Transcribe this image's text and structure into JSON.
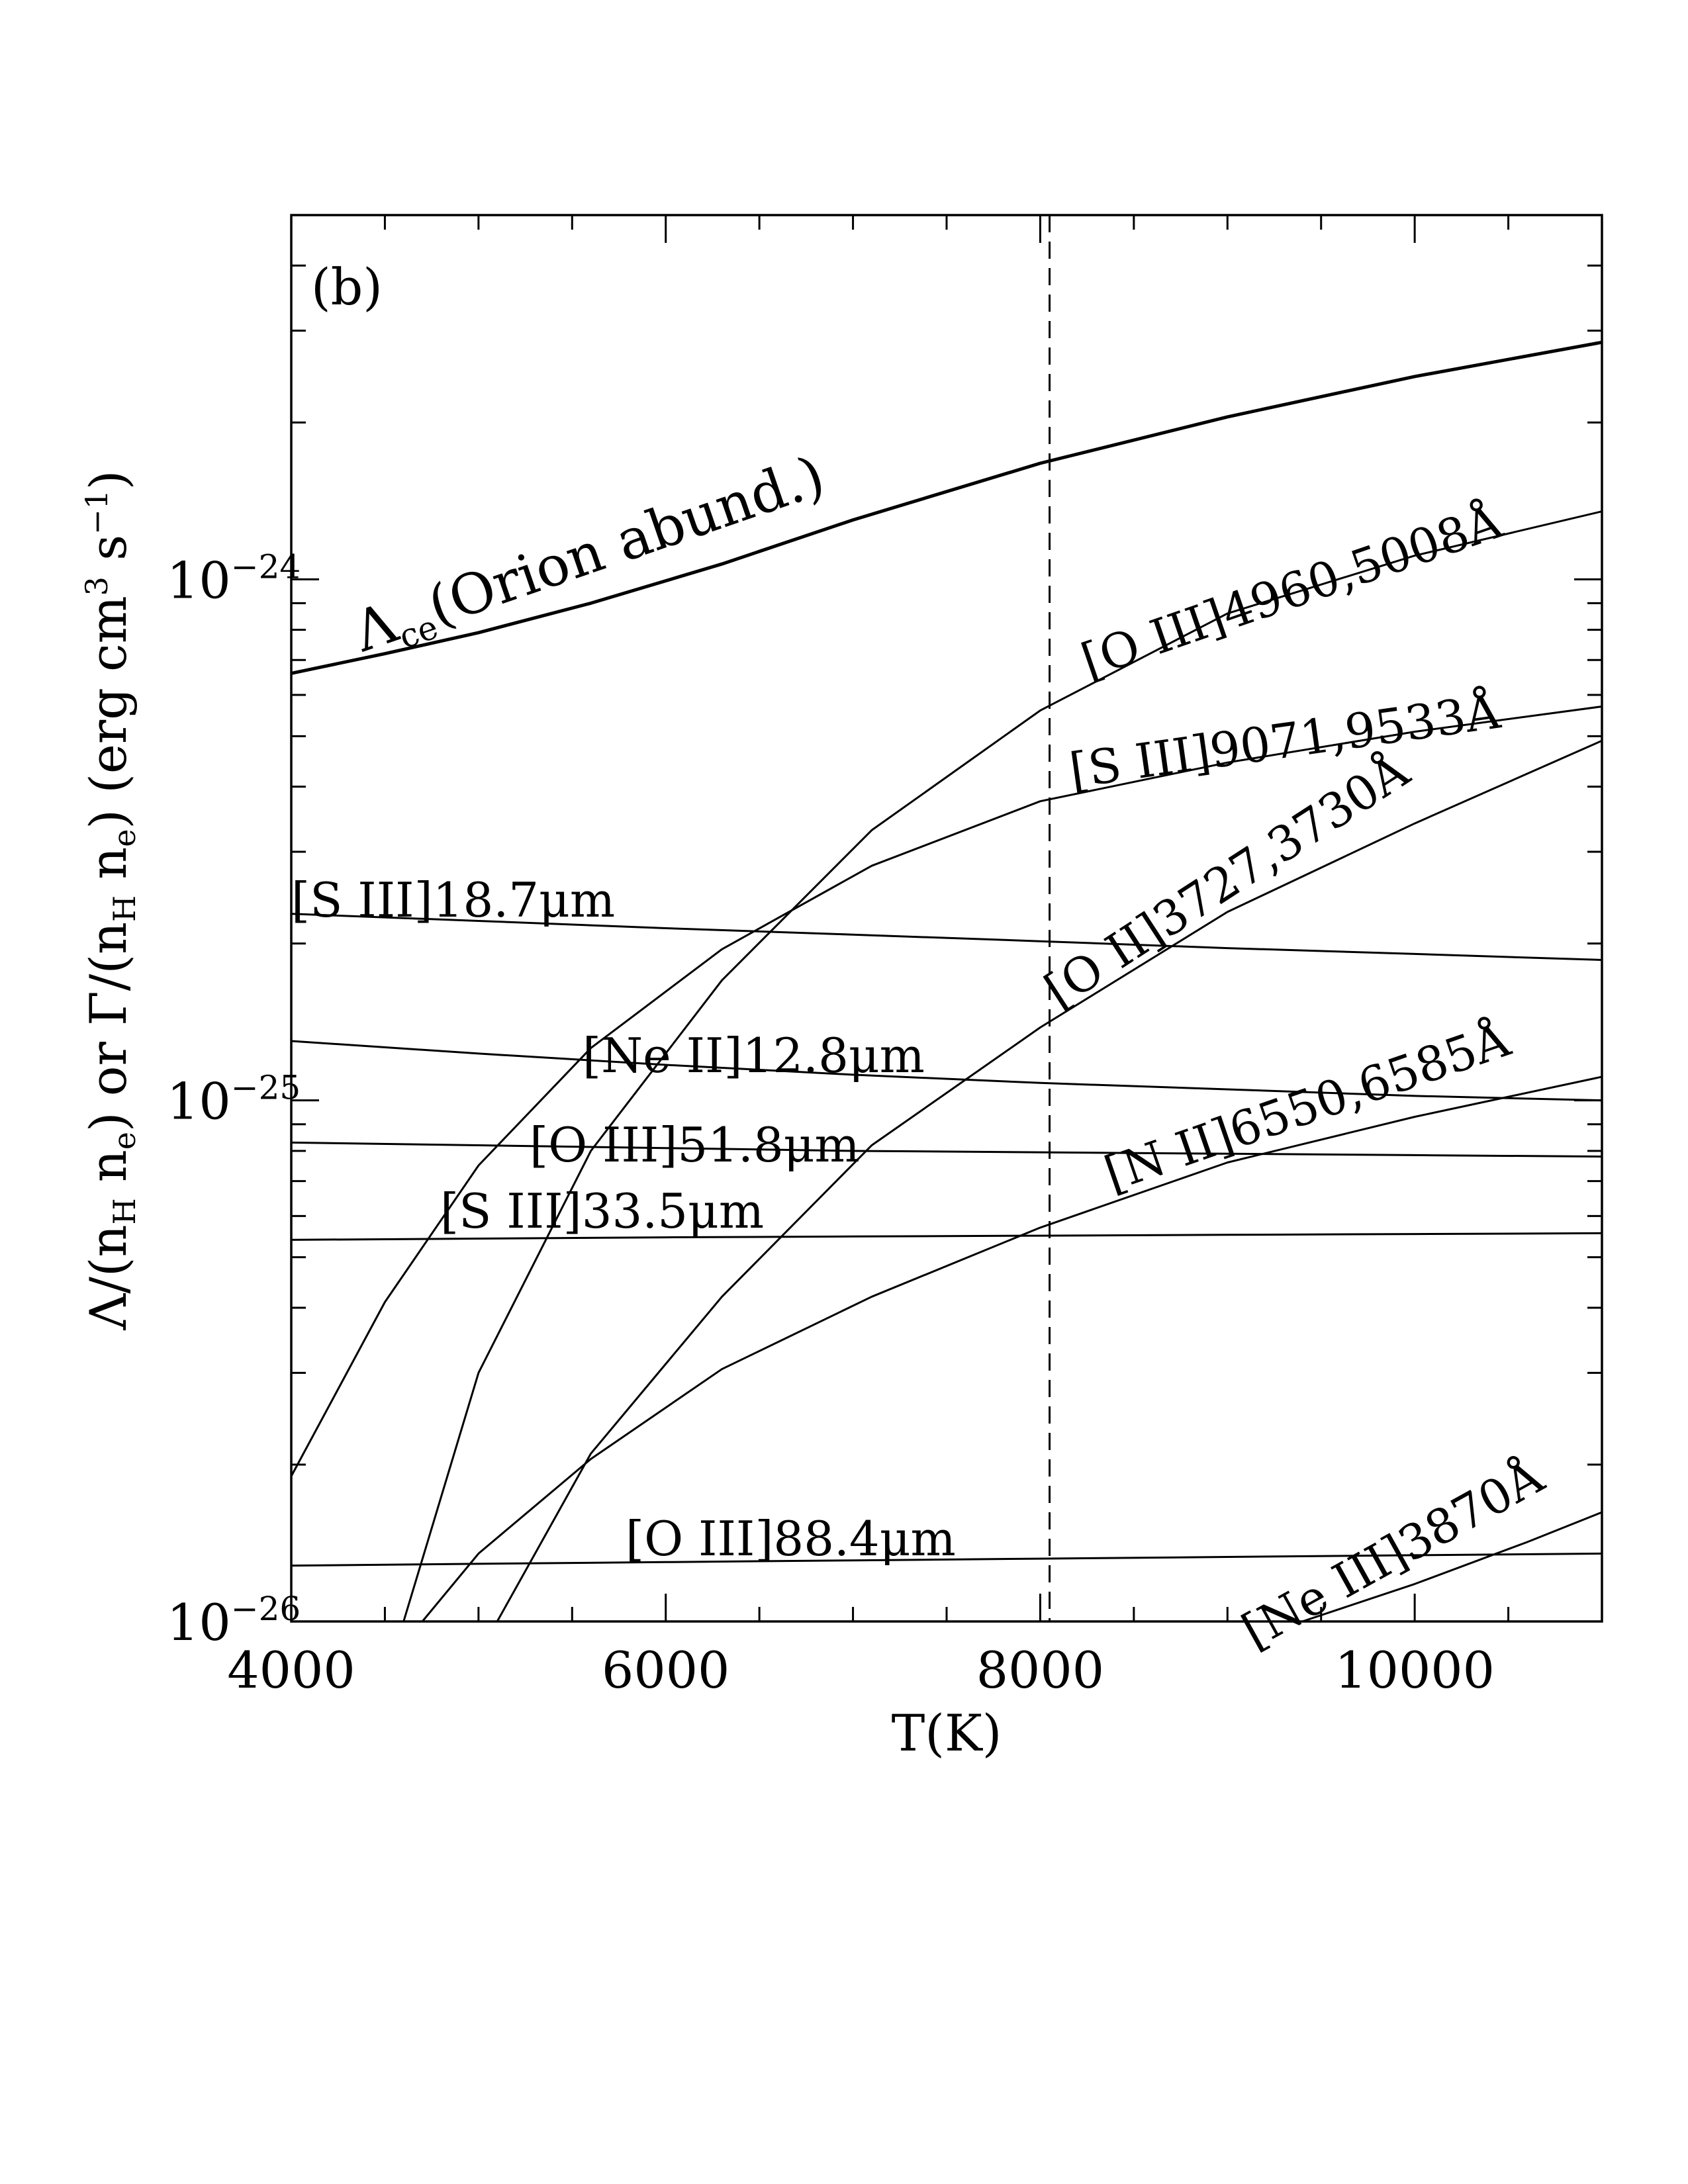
{
  "chart_data": {
    "type": "line",
    "panel_label": "(b)",
    "xlabel": "T(K)",
    "ylabel": "Λ/(n_H n_e) or Γ/(n_H n_e) (erg cm³ s⁻¹)",
    "yscale": "log",
    "xlim": [
      4000,
      11000
    ],
    "ylim": [
      1e-26,
      5e-24
    ],
    "x_ticks": [
      4000,
      6000,
      8000,
      10000
    ],
    "y_tick_labels": [
      {
        "value": 1e-26,
        "base": "10",
        "exp": "−26"
      },
      {
        "value": 1e-25,
        "base": "10",
        "exp": "−25"
      },
      {
        "value": 1e-24,
        "base": "10",
        "exp": "−24"
      }
    ],
    "reference_line": {
      "x": 8050,
      "style": "dashed"
    },
    "series": [
      {
        "name": "Λce(Orion abund.)",
        "x": [
          4000,
          4500,
          5000,
          5600,
          6300,
          7000,
          8000,
          9000,
          10000,
          11000
        ],
        "y": [
          6.6e-25,
          7.2e-25,
          7.9e-25,
          9e-25,
          1.07e-24,
          1.3e-24,
          1.67e-24,
          2.05e-24,
          2.45e-24,
          2.85e-24
        ]
      },
      {
        "name": "[O III]4960,5008Å",
        "x": [
          4600,
          5000,
          5600,
          6300,
          7100,
          8000,
          9000,
          10000,
          11000
        ],
        "y": [
          1e-26,
          3e-26,
          8e-26,
          1.7e-25,
          3.3e-25,
          5.6e-25,
          8.6e-25,
          1.11e-24,
          1.35e-24
        ]
      },
      {
        "name": "[S III]9071,9533Å",
        "x": [
          4000,
          4500,
          5000,
          5600,
          6300,
          7100,
          8000,
          9000,
          10000,
          11000
        ],
        "y": [
          1.9e-26,
          4.1e-26,
          7.5e-26,
          1.26e-25,
          1.95e-25,
          2.82e-25,
          3.75e-25,
          4.45e-25,
          5.1e-25,
          5.7e-25
        ]
      },
      {
        "name": "[O II]3727,3730Å",
        "x": [
          5100,
          5600,
          6300,
          7100,
          8000,
          9000,
          10000,
          11000
        ],
        "y": [
          1e-26,
          2.1e-26,
          4.2e-26,
          8.2e-26,
          1.38e-25,
          2.3e-25,
          3.4e-25,
          4.9e-25
        ]
      },
      {
        "name": "[N II]6550,6585Å",
        "x": [
          4700,
          5000,
          5600,
          6300,
          7100,
          8000,
          9000,
          10000,
          11000
        ],
        "y": [
          1e-26,
          1.35e-26,
          2.05e-26,
          3.05e-26,
          4.2e-26,
          5.7e-26,
          7.6e-26,
          9.3e-26,
          1.11e-25
        ]
      },
      {
        "name": "[S III]18.7μm",
        "x": [
          4000,
          5000,
          6000,
          7000,
          8000,
          9000,
          10000,
          11000
        ],
        "y": [
          2.28e-25,
          2.21e-25,
          2.14e-25,
          2.08e-25,
          2.02e-25,
          1.96e-25,
          1.91e-25,
          1.86e-25
        ]
      },
      {
        "name": "[Ne II]12.8μm",
        "x": [
          4000,
          5000,
          6000,
          7000,
          8000,
          9000,
          10000,
          11000
        ],
        "y": [
          1.3e-25,
          1.23e-25,
          1.17e-25,
          1.12e-25,
          1.08e-25,
          1.05e-25,
          1.02e-25,
          1e-25
        ]
      },
      {
        "name": "[O III]51.8μm",
        "x": [
          4000,
          5000,
          6000,
          7000,
          8000,
          9000,
          10000,
          11000
        ],
        "y": [
          8.3e-26,
          8.2e-26,
          8.1e-26,
          8e-26,
          7.95e-26,
          7.9e-26,
          7.85e-26,
          7.8e-26
        ]
      },
      {
        "name": "[S III]33.5μm",
        "x": [
          4000,
          5000,
          6000,
          7000,
          8000,
          9000,
          10000,
          11000
        ],
        "y": [
          5.4e-26,
          5.43e-26,
          5.46e-26,
          5.48e-26,
          5.5e-26,
          5.52e-26,
          5.54e-26,
          5.56e-26
        ]
      },
      {
        "name": "[O III]88.4μm",
        "x": [
          4000,
          5000,
          6000,
          7000,
          8000,
          9000,
          10000,
          11000
        ],
        "y": [
          1.28e-26,
          1.29e-26,
          1.3e-26,
          1.31e-26,
          1.32e-26,
          1.33e-26,
          1.34e-26,
          1.35e-26
        ]
      },
      {
        "name": "[Ne III]3870Å",
        "x": [
          9400,
          10000,
          10600,
          11000
        ],
        "y": [
          1e-26,
          1.18e-26,
          1.42e-26,
          1.62e-26
        ]
      }
    ],
    "labels": [
      {
        "key": "lce",
        "main": "Λ",
        "sub": "ce",
        "rest": "(Orion  abund.)"
      },
      {
        "key": "oiii4960",
        "text": "[O III]4960,5008Å"
      },
      {
        "key": "siii9071",
        "text": "[S III]9071,9533Å"
      },
      {
        "key": "oii3727",
        "text": "[O II]3727,3730Å"
      },
      {
        "key": "nii6550",
        "text": "[N II]6550,6585Å"
      },
      {
        "key": "siii187",
        "text": "[S III]18.7μm"
      },
      {
        "key": "neii128",
        "text": "[Ne II]12.8μm"
      },
      {
        "key": "oiii518",
        "text": "[O III]51.8μm"
      },
      {
        "key": "siii335",
        "text": "[S III]33.5μm"
      },
      {
        "key": "oiii884",
        "text": "[O III]88.4μm"
      },
      {
        "key": "neiii3870",
        "text": "[Ne III]3870Å"
      }
    ]
  }
}
